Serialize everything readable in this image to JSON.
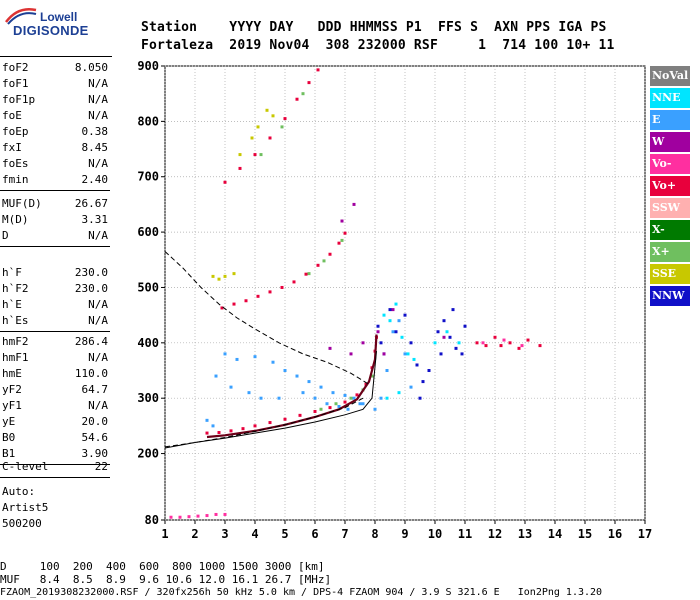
{
  "logo": {
    "top": "Lowell",
    "main": "DIGISONDE"
  },
  "header": {
    "line1": "Station    YYYY DAY   DDD HHMMSS P1  FFS S  AXN PPS IGA PS",
    "line2": "Fortaleza  2019 Nov04  308 232000 RSF     1  714 100 10+ 11"
  },
  "params_group1": [
    {
      "key": "foF2",
      "value": "8.050"
    },
    {
      "key": "foF1",
      "value": "N/A"
    },
    {
      "key": "foF1p",
      "value": "N/A"
    },
    {
      "key": "foE",
      "value": "N/A"
    },
    {
      "key": "foEp",
      "value": "0.38"
    },
    {
      "key": "fxI",
      "value": "8.45"
    },
    {
      "key": "foEs",
      "value": "N/A"
    },
    {
      "key": "fmin",
      "value": "2.40"
    }
  ],
  "params_group2": [
    {
      "key": "MUF(D)",
      "value": "26.67"
    },
    {
      "key": "M(D)",
      "value": "3.31"
    },
    {
      "key": "D",
      "value": "N/A"
    }
  ],
  "params_group3": [
    {
      "key": "h`F",
      "value": "230.0"
    },
    {
      "key": "h`F2",
      "value": "230.0"
    },
    {
      "key": "h`E",
      "value": "N/A"
    },
    {
      "key": "h`Es",
      "value": "N/A"
    }
  ],
  "params_group4": [
    {
      "key": "hmF2",
      "value": "286.4"
    },
    {
      "key": "hmF1",
      "value": "N/A"
    },
    {
      "key": "hmE",
      "value": "110.0"
    },
    {
      "key": "yF2",
      "value": "64.7"
    },
    {
      "key": "yF1",
      "value": "N/A"
    },
    {
      "key": "yE",
      "value": "20.0"
    },
    {
      "key": "B0",
      "value": "54.6"
    },
    {
      "key": "B1",
      "value": "3.90"
    }
  ],
  "params_group5": [
    {
      "key": "C-level",
      "value": "22"
    }
  ],
  "autoscale": {
    "line1": "Auto:",
    "line2": "Artist5",
    "line3": "500200"
  },
  "legend": [
    {
      "label": "NoVal",
      "color": "#7f7f7f"
    },
    {
      "label": "NNE",
      "color": "#00e5ff"
    },
    {
      "label": "E",
      "color": "#3aa0ff"
    },
    {
      "label": "W",
      "color": "#a0009f"
    },
    {
      "label": "Vo-",
      "color": "#ff2fa0"
    },
    {
      "label": "Vo+",
      "color": "#e8003c"
    },
    {
      "label": "SSW",
      "color": "#ffb0b0"
    },
    {
      "label": "X-",
      "color": "#007a00"
    },
    {
      "label": "X+",
      "color": "#6fbf5f"
    },
    {
      "label": "SSE",
      "color": "#c8c800"
    },
    {
      "label": "NNW",
      "color": "#1010c8"
    }
  ],
  "footer": {
    "row_d": "D     100  200  400  600  800 1000 1500 3000 [km]",
    "row_muf": "MUF   8.4  8.5  8.9  9.6 10.6 12.0 16.1 26.7 [MHz]",
    "file_line": "FZAOM_2019308232000.RSF / 320fx256h 50 kHz 5.0 km / DPS-4 FZAOM 904 / 3.9 S 321.6 E   Ion2Png 1.3.20"
  },
  "chart_data": {
    "type": "scatter",
    "title": "",
    "xlabel": "",
    "ylabel": "",
    "xlim": [
      1,
      17
    ],
    "ylim": [
      80,
      900
    ],
    "x_ticks": [
      "1",
      "2",
      "3",
      "4",
      "5",
      "6",
      "7",
      "8",
      "9",
      "10",
      "11",
      "12",
      "13",
      "14",
      "15",
      "16",
      "17"
    ],
    "y_ticks": [
      "80",
      "200",
      "300",
      "400",
      "500",
      "600",
      "700",
      "800",
      "900"
    ],
    "grid": true,
    "series": [
      {
        "style": "scatter",
        "color": "#3aa0ff",
        "points": [
          [
            3.0,
            380
          ],
          [
            3.4,
            370
          ],
          [
            4.0,
            375
          ],
          [
            4.6,
            365
          ],
          [
            5.0,
            350
          ],
          [
            5.4,
            340
          ],
          [
            5.8,
            330
          ],
          [
            6.2,
            320
          ],
          [
            6.6,
            310
          ],
          [
            7.0,
            305
          ],
          [
            7.3,
            300
          ],
          [
            7.6,
            290
          ],
          [
            8.0,
            280
          ],
          [
            8.2,
            300
          ],
          [
            8.4,
            350
          ],
          [
            8.6,
            420
          ],
          [
            8.8,
            440
          ],
          [
            9.0,
            380
          ],
          [
            9.2,
            320
          ],
          [
            2.7,
            340
          ],
          [
            3.2,
            320
          ],
          [
            3.8,
            310
          ],
          [
            4.2,
            300
          ],
          [
            4.8,
            300
          ],
          [
            5.6,
            310
          ],
          [
            6.0,
            300
          ],
          [
            6.4,
            290
          ],
          [
            6.8,
            285
          ],
          [
            7.1,
            280
          ],
          [
            7.5,
            290
          ],
          [
            2.4,
            260
          ],
          [
            2.6,
            250
          ]
        ]
      },
      {
        "style": "scatter",
        "color": "#e8003c",
        "points": [
          [
            2.4,
            237
          ],
          [
            2.8,
            238
          ],
          [
            3.2,
            241
          ],
          [
            3.6,
            245
          ],
          [
            4.0,
            250
          ],
          [
            4.5,
            256
          ],
          [
            5.0,
            262
          ],
          [
            5.5,
            269
          ],
          [
            6.0,
            276
          ],
          [
            6.5,
            283
          ],
          [
            7.0,
            293
          ],
          [
            7.4,
            306
          ],
          [
            7.7,
            325
          ],
          [
            7.9,
            355
          ],
          [
            8.0,
            385
          ],
          [
            8.05,
            410
          ],
          [
            2.9,
            463
          ],
          [
            3.3,
            470
          ],
          [
            3.7,
            476
          ],
          [
            4.1,
            484
          ],
          [
            4.5,
            492
          ],
          [
            4.9,
            500
          ],
          [
            5.3,
            510
          ],
          [
            5.7,
            524
          ],
          [
            6.1,
            540
          ],
          [
            6.5,
            560
          ],
          [
            6.8,
            580
          ],
          [
            7.0,
            598
          ],
          [
            3.0,
            690
          ],
          [
            3.5,
            715
          ],
          [
            4.0,
            740
          ],
          [
            4.5,
            770
          ],
          [
            5.0,
            805
          ],
          [
            5.4,
            840
          ],
          [
            5.8,
            870
          ],
          [
            6.1,
            893
          ]
        ]
      },
      {
        "style": "scatter",
        "color": "#6fbf5f",
        "points": [
          [
            6.2,
            280
          ],
          [
            6.7,
            290
          ],
          [
            7.2,
            300
          ],
          [
            7.6,
            315
          ],
          [
            7.9,
            340
          ],
          [
            5.8,
            525
          ],
          [
            6.3,
            548
          ],
          [
            6.9,
            585
          ],
          [
            4.2,
            740
          ],
          [
            4.9,
            790
          ],
          [
            5.6,
            850
          ]
        ]
      },
      {
        "style": "scatter",
        "color": "#1010c8",
        "points": [
          [
            8.1,
            430
          ],
          [
            8.2,
            400
          ],
          [
            8.3,
            380
          ],
          [
            8.5,
            460
          ],
          [
            8.7,
            420
          ],
          [
            9.0,
            450
          ],
          [
            9.2,
            400
          ],
          [
            9.4,
            360
          ],
          [
            9.6,
            330
          ],
          [
            10.1,
            420
          ],
          [
            10.3,
            440
          ],
          [
            10.5,
            410
          ],
          [
            10.7,
            390
          ],
          [
            10.9,
            380
          ],
          [
            11.0,
            430
          ],
          [
            10.2,
            380
          ],
          [
            10.6,
            460
          ],
          [
            9.5,
            300
          ],
          [
            9.8,
            350
          ]
        ]
      },
      {
        "style": "scatter",
        "color": "#00e5ff",
        "points": [
          [
            8.3,
            450
          ],
          [
            8.5,
            440
          ],
          [
            8.7,
            470
          ],
          [
            8.9,
            410
          ],
          [
            9.1,
            380
          ],
          [
            9.3,
            370
          ],
          [
            10.0,
            400
          ],
          [
            10.4,
            420
          ],
          [
            10.8,
            400
          ],
          [
            8.4,
            300
          ],
          [
            8.8,
            310
          ]
        ]
      },
      {
        "style": "scatter",
        "color": "#a0009f",
        "points": [
          [
            6.5,
            390
          ],
          [
            7.2,
            380
          ],
          [
            7.6,
            400
          ],
          [
            8.1,
            420
          ],
          [
            8.3,
            380
          ],
          [
            8.6,
            460
          ],
          [
            10.3,
            410
          ],
          [
            6.9,
            620
          ],
          [
            7.3,
            650
          ]
        ]
      },
      {
        "style": "scatter",
        "color": "#c8c800",
        "points": [
          [
            2.6,
            520
          ],
          [
            2.8,
            515
          ],
          [
            3.0,
            520
          ],
          [
            3.3,
            525
          ],
          [
            3.5,
            740
          ],
          [
            3.9,
            770
          ],
          [
            4.4,
            820
          ],
          [
            4.6,
            810
          ],
          [
            4.1,
            790
          ]
        ]
      },
      {
        "style": "scatter",
        "color": "#e8003c",
        "points": [
          [
            11.4,
            400
          ],
          [
            11.7,
            395
          ],
          [
            12.0,
            410
          ],
          [
            12.2,
            395
          ],
          [
            12.5,
            400
          ],
          [
            12.8,
            390
          ],
          [
            13.1,
            405
          ],
          [
            13.5,
            395
          ]
        ]
      },
      {
        "style": "scatter",
        "color": "#ff2fa0",
        "points": [
          [
            1.2,
            85
          ],
          [
            1.5,
            85
          ],
          [
            1.8,
            86
          ],
          [
            2.1,
            87
          ],
          [
            2.4,
            88
          ],
          [
            2.7,
            90
          ],
          [
            3.0,
            90
          ],
          [
            11.6,
            400
          ],
          [
            12.3,
            405
          ],
          [
            12.9,
            395
          ]
        ]
      },
      {
        "style": "line",
        "color": "#6b0018",
        "points": [
          [
            2.4,
            230
          ],
          [
            3.0,
            233
          ],
          [
            4.0,
            241
          ],
          [
            5.0,
            252
          ],
          [
            6.0,
            266
          ],
          [
            6.8,
            280
          ],
          [
            7.4,
            298
          ],
          [
            7.8,
            330
          ],
          [
            8.0,
            370
          ],
          [
            8.05,
            415
          ]
        ]
      },
      {
        "style": "line",
        "color": "#000000",
        "points": [
          [
            1.0,
            210
          ],
          [
            2.0,
            220
          ],
          [
            3.0,
            228
          ],
          [
            4.0,
            237
          ],
          [
            5.0,
            246
          ],
          [
            6.0,
            257
          ],
          [
            7.0,
            270
          ],
          [
            7.6,
            280
          ],
          [
            7.9,
            300
          ],
          [
            8.05,
            385
          ]
        ]
      },
      {
        "style": "dashed",
        "color": "#000000",
        "points": [
          [
            1.0,
            565
          ],
          [
            1.6,
            535
          ],
          [
            2.2,
            500
          ],
          [
            2.8,
            470
          ],
          [
            3.4,
            445
          ],
          [
            4.0,
            425
          ],
          [
            4.8,
            400
          ],
          [
            5.6,
            380
          ],
          [
            6.4,
            365
          ],
          [
            7.2,
            345
          ],
          [
            7.8,
            325
          ]
        ]
      },
      {
        "style": "dashed",
        "color": "#000000",
        "points": [
          [
            1.0,
            212
          ],
          [
            2.0,
            220
          ],
          [
            3.0,
            229
          ],
          [
            4.0,
            240
          ],
          [
            5.0,
            252
          ],
          [
            6.0,
            266
          ],
          [
            7.0,
            283
          ],
          [
            7.6,
            300
          ]
        ]
      }
    ]
  }
}
